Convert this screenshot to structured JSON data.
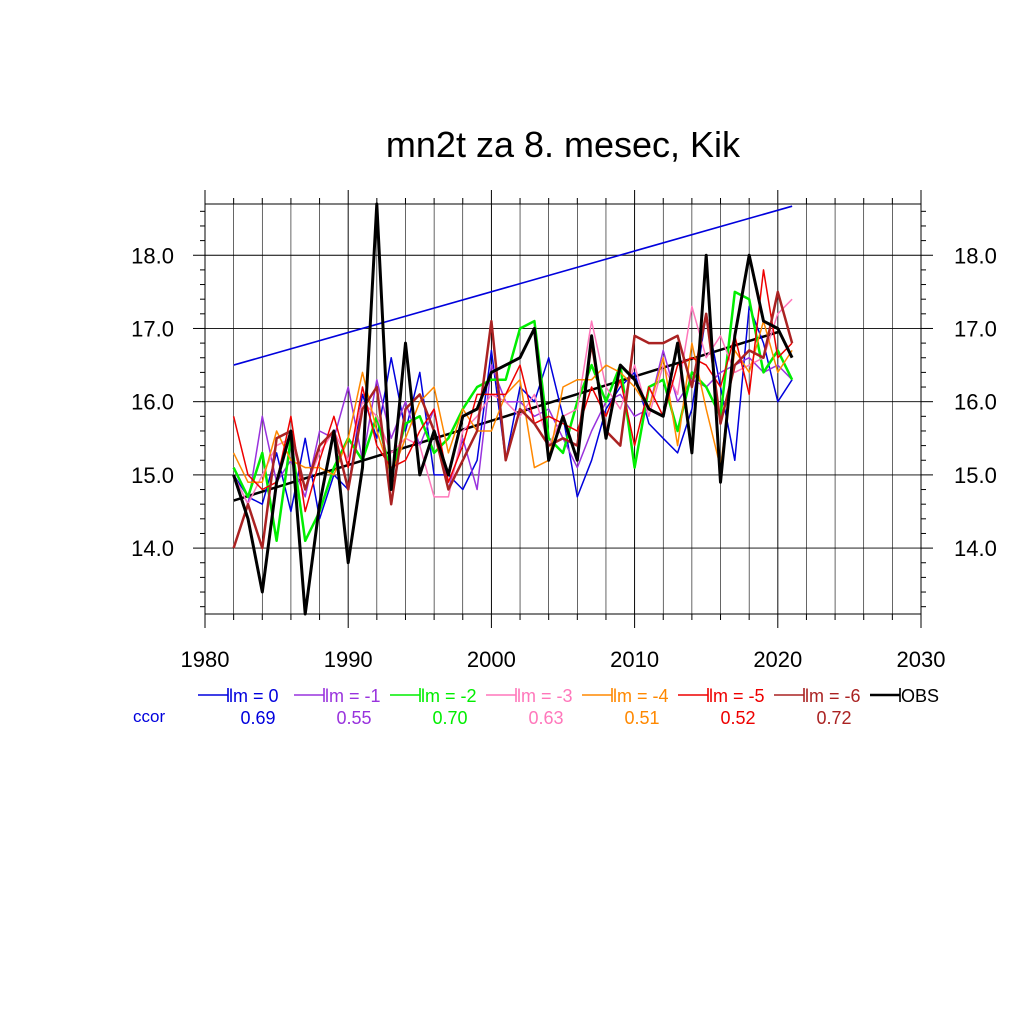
{
  "chart_data": {
    "type": "line",
    "title": "mn2t za 8. mesec, Kik",
    "xlabel": "",
    "ylabel": "",
    "xlim": [
      1980,
      2030
    ],
    "ylim": [
      13.1,
      18.7
    ],
    "x_ticks": [
      1980,
      1990,
      2000,
      2010,
      2020,
      2030
    ],
    "x_tick_labels": [
      "1980",
      "1990",
      "2000",
      "2010",
      "2020",
      "2030"
    ],
    "y_ticks": [
      14.0,
      15.0,
      16.0,
      17.0,
      18.0
    ],
    "y_tick_labels": [
      "14.0",
      "15.0",
      "16.0",
      "17.0",
      "18.0"
    ],
    "grid": true,
    "legend_placement": "bottom",
    "ccor_label": "ccor",
    "years": [
      1982,
      1983,
      1984,
      1985,
      1986,
      1987,
      1988,
      1989,
      1990,
      1991,
      1992,
      1993,
      1994,
      1995,
      1996,
      1997,
      1998,
      1999,
      2000,
      2001,
      2002,
      2003,
      2004,
      2005,
      2006,
      2007,
      2008,
      2009,
      2010,
      2011,
      2012,
      2013,
      2014,
      2015,
      2016,
      2017,
      2018,
      2019,
      2020,
      2021
    ],
    "series": [
      {
        "name": "lm = 0",
        "ccor": "0.69",
        "color": "#0000dd",
        "width": 1.5,
        "values": [
          15.0,
          14.7,
          14.6,
          15.3,
          14.5,
          15.5,
          14.4,
          15.0,
          14.8,
          16.1,
          15.5,
          16.6,
          15.6,
          16.4,
          15.0,
          15.0,
          14.8,
          15.2,
          16.7,
          15.2,
          16.2,
          16.0,
          16.6,
          15.8,
          14.7,
          15.2,
          15.9,
          16.2,
          16.4,
          15.7,
          15.5,
          15.3,
          15.9,
          17.2,
          16.2,
          15.2,
          17.3,
          16.8,
          16.0,
          16.3
        ]
      },
      {
        "name": "lm = -1",
        "ccor": "0.55",
        "color": "#9933dd",
        "width": 1.5,
        "values": [
          15.0,
          14.6,
          15.8,
          14.9,
          15.2,
          14.7,
          15.6,
          15.5,
          16.2,
          15.2,
          16.3,
          15.5,
          16.0,
          15.4,
          15.9,
          14.8,
          15.5,
          14.8,
          16.5,
          16.0,
          16.0,
          15.8,
          15.9,
          15.5,
          15.1,
          15.6,
          16.0,
          16.1,
          15.8,
          15.9,
          16.7,
          16.0,
          16.3,
          16.2,
          16.4,
          16.5,
          16.6,
          16.4,
          16.5,
          16.3
        ]
      },
      {
        "name": "lm = -2",
        "ccor": "0.70",
        "color": "#00ee00",
        "width": 2.5,
        "values": [
          15.1,
          14.7,
          15.3,
          14.1,
          15.5,
          14.1,
          14.5,
          15.1,
          15.5,
          15.2,
          15.8,
          15.0,
          15.7,
          15.8,
          15.3,
          15.5,
          15.9,
          16.2,
          16.3,
          16.3,
          17.0,
          17.1,
          15.5,
          15.3,
          16.0,
          16.5,
          16.0,
          16.5,
          15.1,
          16.2,
          16.3,
          15.6,
          16.4,
          16.2,
          15.8,
          17.5,
          17.4,
          16.4,
          16.7,
          16.3
        ]
      },
      {
        "name": "lm = -3",
        "ccor": "0.63",
        "color": "#ff77bb",
        "width": 1.5,
        "values": [
          15.0,
          14.6,
          15.0,
          15.4,
          15.5,
          14.8,
          15.3,
          15.6,
          15.2,
          16.0,
          15.8,
          15.3,
          15.5,
          15.4,
          14.7,
          14.7,
          15.6,
          15.8,
          16.1,
          16.0,
          15.8,
          16.1,
          15.4,
          15.8,
          15.9,
          17.1,
          16.2,
          15.9,
          16.5,
          15.8,
          16.5,
          16.1,
          17.3,
          16.6,
          16.9,
          16.4,
          16.5,
          16.6,
          17.2,
          17.4
        ]
      },
      {
        "name": "lm = -4",
        "ccor": "0.51",
        "color": "#ff8800",
        "width": 1.5,
        "values": [
          15.3,
          14.9,
          14.9,
          15.6,
          15.2,
          15.1,
          15.1,
          15.0,
          15.5,
          16.4,
          15.6,
          15.0,
          15.5,
          16.0,
          16.2,
          15.3,
          15.9,
          15.6,
          15.6,
          16.1,
          16.3,
          15.1,
          15.2,
          16.2,
          16.3,
          16.3,
          16.5,
          16.4,
          16.2,
          15.9,
          16.6,
          15.4,
          16.8,
          15.9,
          15.1,
          16.7,
          16.4,
          17.1,
          16.4,
          16.7
        ]
      },
      {
        "name": "lm = -5",
        "ccor": "0.52",
        "color": "#ee0000",
        "width": 1.5,
        "values": [
          15.8,
          15.0,
          14.8,
          14.9,
          15.8,
          14.5,
          15.2,
          15.8,
          15.1,
          16.2,
          15.4,
          15.1,
          15.2,
          15.6,
          15.9,
          14.9,
          15.4,
          16.1,
          16.1,
          16.1,
          16.5,
          15.7,
          15.8,
          15.7,
          15.6,
          16.2,
          15.8,
          16.3,
          15.4,
          16.2,
          15.8,
          16.5,
          16.6,
          16.5,
          16.2,
          16.9,
          16.1,
          17.8,
          16.6,
          16.8
        ]
      },
      {
        "name": "lm = -6",
        "ccor": "0.72",
        "color": "#aa2222",
        "width": 2.5,
        "values": [
          14.0,
          14.6,
          14.0,
          15.5,
          15.6,
          14.8,
          15.4,
          15.6,
          14.8,
          15.9,
          16.2,
          14.6,
          15.9,
          16.1,
          15.6,
          14.8,
          15.2,
          15.6,
          17.1,
          15.2,
          15.9,
          15.7,
          15.4,
          15.5,
          15.4,
          16.8,
          15.6,
          15.4,
          16.9,
          16.8,
          16.8,
          16.9,
          16.2,
          17.2,
          15.7,
          16.5,
          16.7,
          16.6,
          17.5,
          16.8
        ]
      },
      {
        "name": "OBS",
        "ccor": "",
        "color": "#000000",
        "width": 3,
        "values": [
          15.0,
          14.4,
          13.4,
          14.9,
          15.6,
          13.1,
          14.6,
          15.6,
          13.8,
          15.1,
          18.7,
          14.8,
          16.8,
          15.0,
          15.6,
          15.0,
          15.8,
          15.9,
          16.4,
          16.5,
          16.6,
          17.0,
          15.2,
          15.8,
          15.2,
          16.9,
          15.5,
          16.5,
          16.3,
          15.9,
          15.8,
          16.8,
          15.3,
          18.0,
          14.9,
          16.9,
          18.0,
          17.1,
          17.0,
          16.6
        ]
      }
    ],
    "trend_lines": [
      {
        "series": "lm = 0",
        "color": "#0000dd",
        "x": [
          1982,
          2021
        ],
        "y": [
          16.5,
          18.67
        ]
      },
      {
        "series": "OBS",
        "color": "#000000",
        "x": [
          1982,
          2020
        ],
        "y": [
          14.65,
          16.95
        ]
      }
    ]
  }
}
